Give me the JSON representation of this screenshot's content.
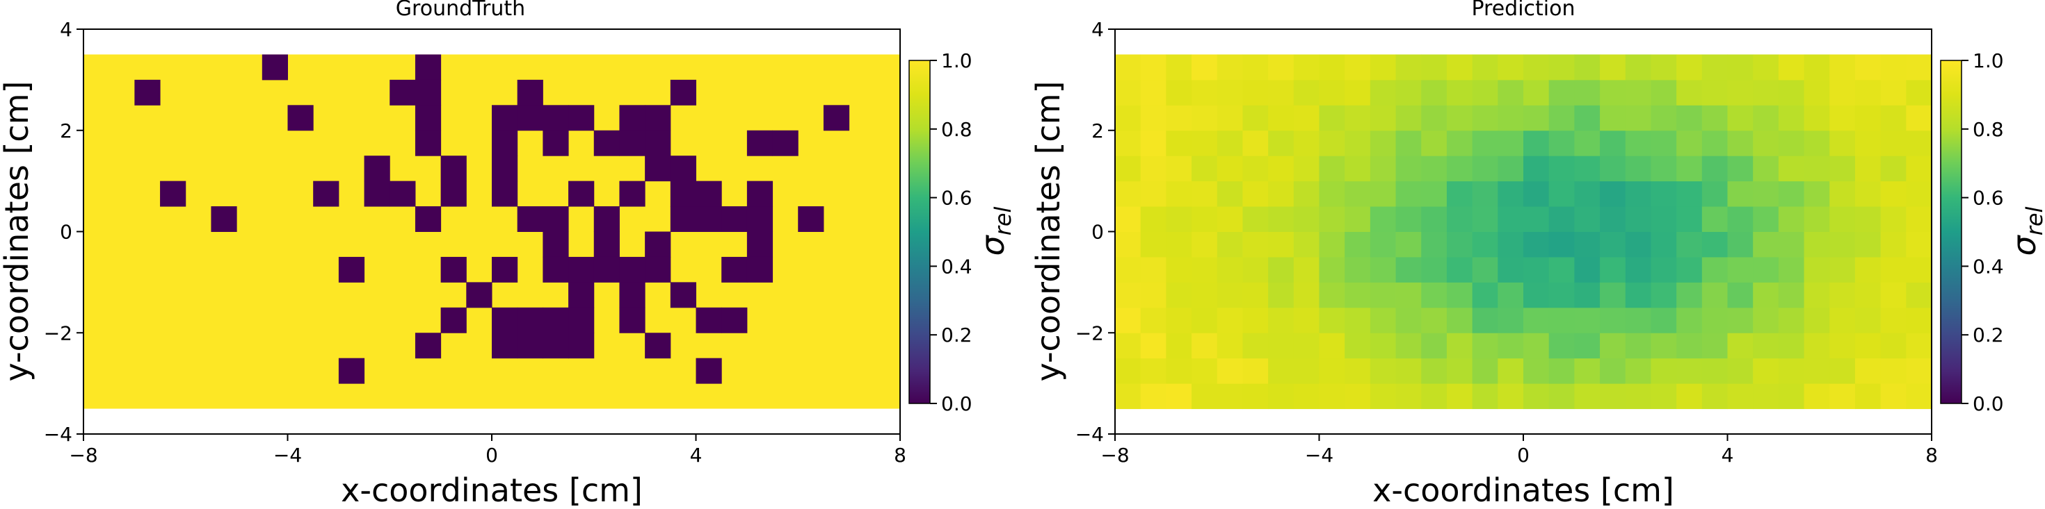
{
  "chart_data": [
    {
      "type": "heatmap",
      "title": "GroundTruth",
      "xlabel": "x-coordinates [cm]",
      "ylabel": "y-coordinates [cm]",
      "xlim": [
        -8,
        8
      ],
      "ylim": [
        -4,
        4
      ],
      "xticks": [
        -8,
        -4,
        0,
        4,
        8
      ],
      "xtick_labels": [
        "−8",
        "−4",
        "0",
        "4",
        "8"
      ],
      "yticks": [
        -4,
        -2,
        0,
        2,
        4
      ],
      "ytick_labels": [
        "−4",
        "−2",
        "0",
        "2",
        "4"
      ],
      "grid_extent": {
        "x": [
          -8,
          8
        ],
        "y": [
          -3.5,
          3.5
        ]
      },
      "cell_size": 0.5,
      "colormap": "viridis",
      "colorbar": {
        "label": "σ",
        "label_sub": "rel",
        "range": [
          0,
          1
        ],
        "ticks": [
          "0.0",
          "0.2",
          "0.4",
          "0.6",
          "0.8",
          "1.0"
        ]
      },
      "background_value": 1.0,
      "cells_value": 0.0,
      "cells": [
        [
          -4.5,
          3
        ],
        [
          -7,
          2.5
        ],
        [
          -2,
          2.5
        ],
        [
          -1.5,
          3
        ],
        [
          -1.5,
          2.5
        ],
        [
          0.5,
          2.5
        ],
        [
          3.5,
          2.5
        ],
        [
          -4,
          2
        ],
        [
          -1.5,
          2
        ],
        [
          0,
          2
        ],
        [
          0.5,
          2
        ],
        [
          1,
          2
        ],
        [
          1.5,
          2
        ],
        [
          2.5,
          2
        ],
        [
          3,
          2
        ],
        [
          6.5,
          2
        ],
        [
          -1.5,
          1.5
        ],
        [
          0,
          1.5
        ],
        [
          1,
          1.5
        ],
        [
          2,
          1.5
        ],
        [
          2.5,
          1.5
        ],
        [
          3,
          1.5
        ],
        [
          5,
          1.5
        ],
        [
          5.5,
          1.5
        ],
        [
          -2.5,
          1
        ],
        [
          -1,
          1
        ],
        [
          0,
          1
        ],
        [
          3,
          1
        ],
        [
          3.5,
          1
        ],
        [
          -6.5,
          0.5
        ],
        [
          -3.5,
          0.5
        ],
        [
          -2.5,
          0.5
        ],
        [
          -2,
          0.5
        ],
        [
          -1,
          0.5
        ],
        [
          0,
          0.5
        ],
        [
          1.5,
          0.5
        ],
        [
          2.5,
          0.5
        ],
        [
          3.5,
          0.5
        ],
        [
          4,
          0.5
        ],
        [
          5,
          0.5
        ],
        [
          -5.5,
          0
        ],
        [
          -1.5,
          0
        ],
        [
          0.5,
          0
        ],
        [
          1,
          0
        ],
        [
          2,
          0
        ],
        [
          3.5,
          0
        ],
        [
          4,
          0
        ],
        [
          4.5,
          0
        ],
        [
          5,
          0
        ],
        [
          6,
          0
        ],
        [
          1,
          -0.5
        ],
        [
          2,
          -0.5
        ],
        [
          3,
          -0.5
        ],
        [
          5,
          -0.5
        ],
        [
          -3,
          -1
        ],
        [
          -1,
          -1
        ],
        [
          0,
          -1
        ],
        [
          1,
          -1
        ],
        [
          1.5,
          -1
        ],
        [
          2,
          -1
        ],
        [
          2.5,
          -1
        ],
        [
          3,
          -1
        ],
        [
          4.5,
          -1
        ],
        [
          5,
          -1
        ],
        [
          -0.5,
          -1.5
        ],
        [
          1.5,
          -1.5
        ],
        [
          2.5,
          -1.5
        ],
        [
          3.5,
          -1.5
        ],
        [
          -1,
          -2
        ],
        [
          1.5,
          -2
        ],
        [
          2.5,
          -2
        ],
        [
          4,
          -2
        ],
        [
          4.5,
          -2
        ],
        [
          0,
          -2
        ],
        [
          0.5,
          -2
        ],
        [
          1,
          -2
        ],
        [
          -1.5,
          -2.5
        ],
        [
          0,
          -2.5
        ],
        [
          0.5,
          -2.5
        ],
        [
          1,
          -2.5
        ],
        [
          1.5,
          -2.5
        ],
        [
          3,
          -2.5
        ],
        [
          -3,
          -3
        ],
        [
          4,
          -3
        ]
      ]
    },
    {
      "type": "heatmap",
      "title": "Prediction",
      "xlabel": "x-coordinates [cm]",
      "ylabel": "y-coordinates [cm]",
      "xlim": [
        -8,
        8
      ],
      "ylim": [
        -4,
        4
      ],
      "xticks": [
        -8,
        -4,
        0,
        4,
        8
      ],
      "xtick_labels": [
        "−8",
        "−4",
        "0",
        "4",
        "8"
      ],
      "yticks": [
        -4,
        -2,
        0,
        2,
        4
      ],
      "ytick_labels": [
        "−4",
        "−2",
        "0",
        "2",
        "4"
      ],
      "grid_extent": {
        "x": [
          -8,
          8
        ],
        "y": [
          -3.5,
          3.5
        ]
      },
      "cell_size": 0.5,
      "colormap": "viridis",
      "colorbar": {
        "label": "σ",
        "label_sub": "rel",
        "range": [
          0,
          1
        ],
        "ticks": [
          "0.0",
          "0.2",
          "0.4",
          "0.6",
          "0.8",
          "1.0"
        ]
      },
      "field": {
        "background": 0.96,
        "blobs": [
          {
            "cx": 1.0,
            "cy": 0.0,
            "sx": 3.6,
            "sy": 2.2,
            "depth": 0.42
          }
        ],
        "min_value": 0.52,
        "noise": 0.04
      }
    }
  ]
}
